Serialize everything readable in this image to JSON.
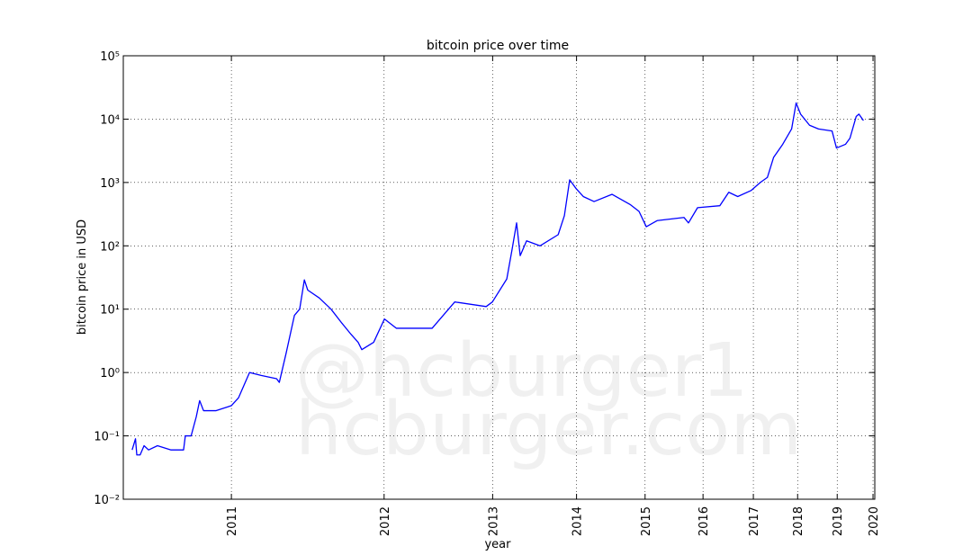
{
  "chart_data": {
    "type": "line",
    "title": "bitcoin price over time",
    "x_label": "year",
    "y_label": "bitcoin price in USD",
    "watermark": [
      "@hcburger1",
      "hcburger.com"
    ],
    "color": "#0000ff",
    "grid": true,
    "xscale": "log",
    "yscale": "log",
    "xlim": [
      546,
      4034
    ],
    "ylim": [
      0.01,
      100000
    ],
    "xticks": [
      {
        "value": 728,
        "label": "2011"
      },
      {
        "value": 1093,
        "label": "2012"
      },
      {
        "value": 1459,
        "label": "2013"
      },
      {
        "value": 1824,
        "label": "2014"
      },
      {
        "value": 2189,
        "label": "2015"
      },
      {
        "value": 2554,
        "label": "2016"
      },
      {
        "value": 2920,
        "label": "2017"
      },
      {
        "value": 3285,
        "label": "2018"
      },
      {
        "value": 3650,
        "label": "2019"
      },
      {
        "value": 4015,
        "label": "2020"
      }
    ],
    "yticks": [
      {
        "value": 0.01,
        "label": "10⁻²"
      },
      {
        "value": 0.1,
        "label": "10⁻¹"
      },
      {
        "value": 1,
        "label": "10⁰"
      },
      {
        "value": 10,
        "label": "10¹"
      },
      {
        "value": 100,
        "label": "10²"
      },
      {
        "value": 1000,
        "label": "10³"
      },
      {
        "value": 10000,
        "label": "10⁴"
      },
      {
        "value": 100000,
        "label": "10⁵"
      }
    ],
    "x": [
      559,
      564,
      566,
      571,
      577,
      584,
      598,
      620,
      641,
      644,
      654,
      663,
      669,
      676,
      699,
      728,
      742,
      764,
      788,
      821,
      827,
      842,
      861,
      873,
      884,
      892,
      920,
      949,
      977,
      1001,
      1020,
      1030,
      1063,
      1094,
      1129,
      1242,
      1319,
      1434,
      1458,
      1515,
      1537,
      1555,
      1570,
      1597,
      1655,
      1737,
      1766,
      1791,
      1822,
      1857,
      1911,
      2005,
      2103,
      2154,
      2196,
      2260,
      2428,
      2457,
      2517,
      2671,
      2735,
      2801,
      2904,
      2974,
      3031,
      3082,
      3157,
      3233,
      3272,
      3311,
      3391,
      3473,
      3600,
      3643,
      3731,
      3776,
      3839,
      3867,
      3914
    ],
    "values": [
      0.06,
      0.09,
      0.05,
      0.05,
      0.07,
      0.06,
      0.07,
      0.06,
      0.06,
      0.1,
      0.1,
      0.2,
      0.36,
      0.25,
      0.25,
      0.3,
      0.4,
      1.0,
      0.9,
      0.8,
      0.7,
      2,
      8,
      10,
      29,
      20,
      15,
      10,
      6,
      4,
      3,
      2.3,
      3,
      7,
      5,
      5,
      13,
      11,
      13,
      30,
      90,
      230,
      70,
      120,
      100,
      150,
      300,
      1100,
      800,
      600,
      500,
      650,
      450,
      350,
      200,
      250,
      280,
      230,
      400,
      430,
      700,
      600,
      750,
      1000,
      1200,
      2500,
      4000,
      7000,
      18000,
      12000,
      8000,
      7000,
      6500,
      3500,
      4000,
      5000,
      11000,
      12000,
      9500
    ]
  }
}
